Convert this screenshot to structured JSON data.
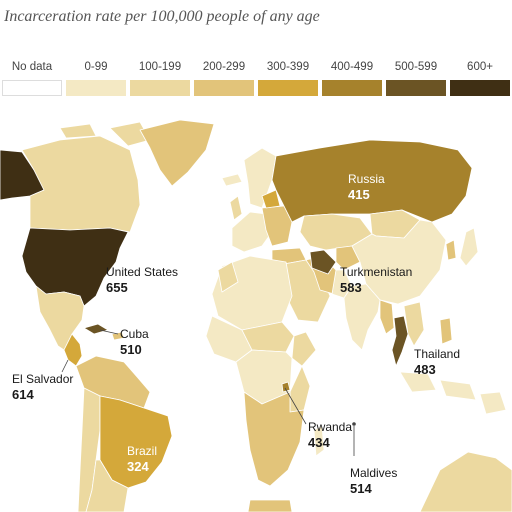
{
  "title": "Incarceration rate per 100,000 people of any age",
  "legend": [
    {
      "label": "No data",
      "color": "#ffffff"
    },
    {
      "label": "0-99",
      "color": "#f4e9c4"
    },
    {
      "label": "100-199",
      "color": "#ecd9a0"
    },
    {
      "label": "200-299",
      "color": "#e2c47a"
    },
    {
      "label": "300-399",
      "color": "#d4a83a"
    },
    {
      "label": "400-499",
      "color": "#a6822c"
    },
    {
      "label": "500-599",
      "color": "#6b5424"
    },
    {
      "label": "600+",
      "color": "#3f2f14"
    }
  ],
  "callouts": [
    {
      "name": "Russia",
      "value": "415"
    },
    {
      "name": "United States",
      "value": "655"
    },
    {
      "name": "Turkmenistan",
      "value": "583"
    },
    {
      "name": "Cuba",
      "value": "510"
    },
    {
      "name": "Thailand",
      "value": "483"
    },
    {
      "name": "El Salvador",
      "value": "614"
    },
    {
      "name": "Rwanda",
      "value": "434"
    },
    {
      "name": "Brazil",
      "value": "324"
    },
    {
      "name": "Maldives",
      "value": "514"
    }
  ]
}
